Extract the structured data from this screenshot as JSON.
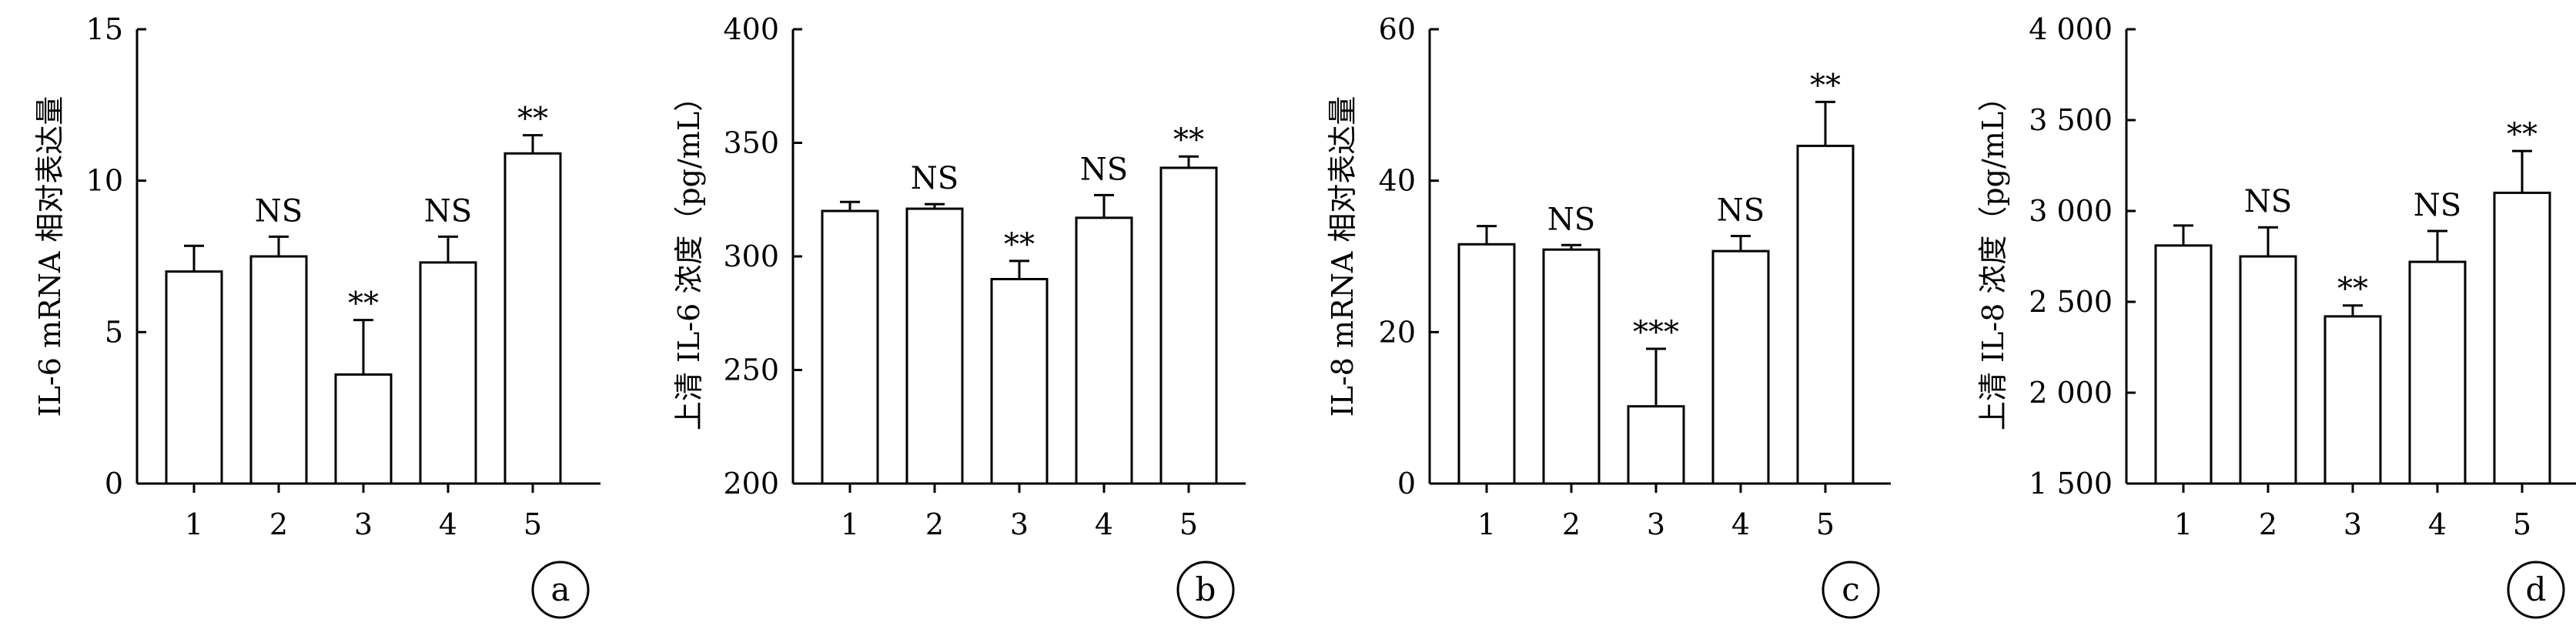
{
  "chart_data": [
    {
      "type": "bar",
      "panel_label": "a",
      "ylabel": "IL-6 mRNA 相对表达量",
      "categories": [
        "1",
        "2",
        "3",
        "4",
        "5"
      ],
      "values": [
        7.0,
        7.5,
        3.6,
        7.3,
        10.9
      ],
      "errors": [
        0.85,
        0.65,
        1.8,
        0.85,
        0.6
      ],
      "significance": [
        "",
        "NS",
        "**",
        "NS",
        "**"
      ],
      "ylim": [
        0,
        15
      ],
      "yticks": [
        0,
        5,
        10,
        15
      ],
      "ytick_labels": [
        "0",
        "5",
        "10",
        "15"
      ],
      "grid": false
    },
    {
      "type": "bar",
      "panel_label": "b",
      "ylabel": "上清 IL-6 浓度（pg/mL）",
      "categories": [
        "1",
        "2",
        "3",
        "4",
        "5"
      ],
      "values": [
        320,
        321,
        290,
        317,
        339
      ],
      "errors": [
        4,
        2,
        8,
        10,
        5
      ],
      "significance": [
        "",
        "NS",
        "**",
        "NS",
        "**"
      ],
      "ylim": [
        200,
        400
      ],
      "yticks": [
        200,
        250,
        300,
        350,
        400
      ],
      "ytick_labels": [
        "200",
        "250",
        "300",
        "350",
        "400"
      ],
      "grid": false
    },
    {
      "type": "bar",
      "panel_label": "c",
      "ylabel": "IL-8 mRNA 相对表达量",
      "categories": [
        "1",
        "2",
        "3",
        "4",
        "5"
      ],
      "values": [
        31.6,
        30.9,
        10.2,
        30.7,
        44.6
      ],
      "errors": [
        2.4,
        0.6,
        7.6,
        2.0,
        5.8
      ],
      "significance": [
        "",
        "NS",
        "***",
        "NS",
        "**"
      ],
      "ylim": [
        0,
        60
      ],
      "yticks": [
        0,
        20,
        40,
        60
      ],
      "ytick_labels": [
        "0",
        "20",
        "40",
        "60"
      ],
      "grid": false
    },
    {
      "type": "bar",
      "panel_label": "d",
      "ylabel": "上清 IL-8 浓度（pg/mL）",
      "categories": [
        "1",
        "2",
        "3",
        "4",
        "5"
      ],
      "values": [
        2810,
        2750,
        2420,
        2720,
        3100
      ],
      "errors": [
        110,
        160,
        60,
        170,
        230
      ],
      "significance": [
        "",
        "NS",
        "**",
        "NS",
        "**"
      ],
      "ylim": [
        1500,
        4000
      ],
      "yticks": [
        1500,
        2000,
        2500,
        3000,
        3500,
        4000
      ],
      "ytick_labels": [
        "1 500",
        "2 000",
        "2 500",
        "3 000",
        "3 500",
        "4 000"
      ],
      "grid": false
    }
  ]
}
